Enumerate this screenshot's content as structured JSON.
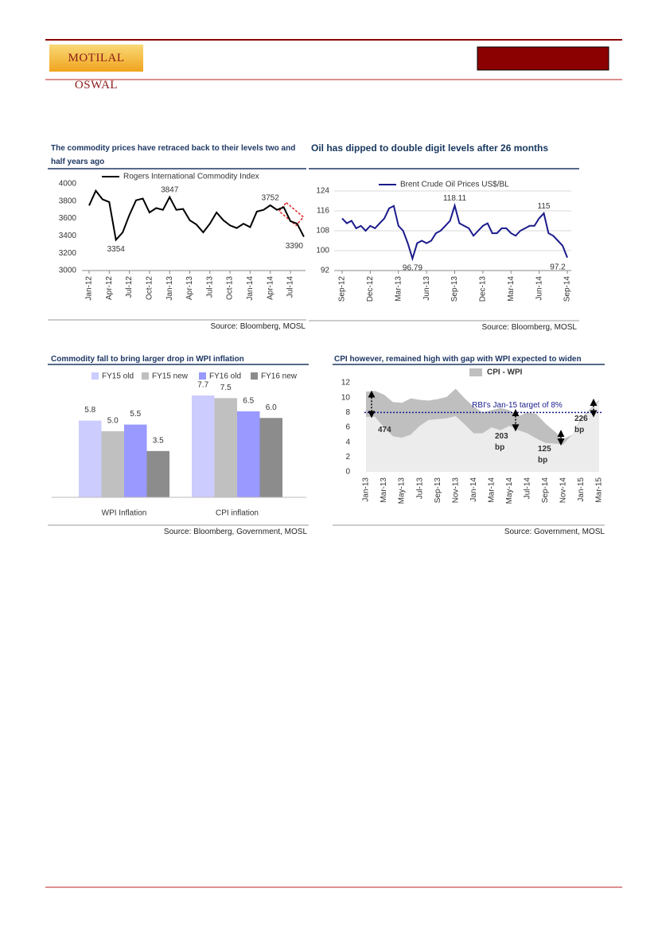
{
  "header": {
    "logo": "MOTILAL OSWAL"
  },
  "chart_data": [
    {
      "type": "line",
      "title": "The commodity prices have retraced back to their levels two and half years ago",
      "source": "Source: Bloomberg, MOSL",
      "categories": [
        "Jan-12",
        null,
        null,
        "Apr-12",
        null,
        null,
        "Jul-12",
        null,
        null,
        "Oct-12",
        null,
        null,
        "Jan-13",
        null,
        null,
        "Apr-13",
        null,
        null,
        "Jul-13",
        null,
        null,
        "Oct-13",
        null,
        null,
        "Jan-14",
        null,
        null,
        "Apr-14",
        null,
        null,
        "Jul-14",
        null,
        null
      ],
      "series": [
        {
          "name": "Rogers International Commodity Index",
          "color": "#000000",
          "values": [
            3750,
            3920,
            3820,
            3790,
            3354,
            3440,
            3640,
            3810,
            3830,
            3670,
            3720,
            3700,
            3847,
            3700,
            3710,
            3580,
            3530,
            3440,
            3540,
            3670,
            3580,
            3520,
            3490,
            3540,
            3500,
            3680,
            3700,
            3752,
            3700,
            3730,
            3570,
            3540,
            3390
          ],
          "value_labels": [
            null,
            null,
            null,
            null,
            "3354",
            null,
            null,
            null,
            null,
            null,
            null,
            null,
            "3847",
            null,
            null,
            null,
            null,
            null,
            null,
            null,
            null,
            null,
            null,
            null,
            null,
            null,
            null,
            "3752",
            null,
            null,
            null,
            null,
            "3390"
          ]
        }
      ],
      "ylim": [
        3000,
        4000
      ],
      "yticks": [
        3000,
        3200,
        3400,
        3600,
        3800,
        4000
      ],
      "grid": false
    },
    {
      "type": "line",
      "title": "Oil has dipped to double digit levels after 26 months",
      "source": "Source: Bloomberg, MOSL",
      "categories": [
        "Sep-12",
        null,
        null,
        null,
        null,
        null,
        "Dec-12",
        null,
        null,
        null,
        null,
        null,
        "Mar-13",
        null,
        null,
        null,
        null,
        null,
        "Jun-13",
        null,
        null,
        null,
        null,
        null,
        "Sep-13",
        null,
        null,
        null,
        null,
        null,
        "Dec-13",
        null,
        null,
        null,
        null,
        null,
        "Mar-14",
        null,
        null,
        null,
        null,
        null,
        "Jun-14",
        null,
        null,
        null,
        null,
        null,
        "Sep-14"
      ],
      "series": [
        {
          "name": "Brent Crude Oil Prices US$/BL",
          "color": "#1a1a8c",
          "values": [
            113,
            111,
            112,
            109,
            110,
            108,
            110,
            109,
            111,
            113,
            117,
            118,
            110,
            108,
            103,
            96.79,
            103,
            104,
            103,
            104,
            107,
            108,
            110,
            112,
            118.11,
            111,
            110,
            109,
            106,
            108,
            110,
            111,
            107,
            107,
            109,
            109,
            107,
            106,
            108,
            109,
            110,
            110,
            113,
            115,
            107,
            106,
            104,
            102,
            97.2
          ],
          "value_labels": [
            null,
            null,
            null,
            null,
            null,
            null,
            null,
            null,
            null,
            null,
            null,
            null,
            null,
            null,
            null,
            "96.79",
            null,
            null,
            null,
            null,
            null,
            null,
            null,
            null,
            "118.11",
            null,
            null,
            null,
            null,
            null,
            null,
            null,
            null,
            null,
            null,
            null,
            null,
            null,
            null,
            null,
            null,
            null,
            null,
            "115",
            null,
            null,
            null,
            null,
            "97.2"
          ]
        }
      ],
      "ylim": [
        92,
        124
      ],
      "yticks": [
        92,
        100,
        108,
        116,
        124
      ],
      "grid": true
    },
    {
      "type": "bar",
      "title": "Commodity fall to bring larger drop in WPI inflation",
      "source": "Source: Bloomberg, Government, MOSL",
      "categories": [
        "WPI Inflation",
        "CPI inflation"
      ],
      "series": [
        {
          "name": "FY15 old",
          "color": "#ccccff",
          "values": [
            5.8,
            7.7
          ],
          "value_labels": [
            "5.8",
            "7.7"
          ]
        },
        {
          "name": "FY15 new",
          "color": "#c0c0c0",
          "values": [
            5,
            7.5
          ],
          "value_labels": [
            "5.0",
            "7.5"
          ]
        },
        {
          "name": "FY16 old",
          "color": "#9999ff",
          "values": [
            5.5,
            6.5
          ],
          "value_labels": [
            "5.5",
            "6.5"
          ]
        },
        {
          "name": "FY16 new",
          "color": "#8c8c8c",
          "values": [
            3.5,
            6
          ],
          "value_labels": [
            "3.5",
            "6.0"
          ]
        }
      ]
    },
    {
      "type": "area",
      "title": "CPI however, remained high with gap with WPI expected to widen",
      "source": "Source: Government, MOSL",
      "categories": [
        "Jan-13",
        null,
        "Mar-13",
        null,
        "May-13",
        null,
        "Jul-13",
        null,
        "Sep-13",
        null,
        "Nov-13",
        null,
        "Jan-14",
        null,
        "Mar-14",
        null,
        "May-14",
        null,
        "Jul-14",
        null,
        "Sep-14",
        null,
        "Nov-14",
        null,
        "Jan-15",
        null,
        "Mar-15"
      ],
      "series": [
        {
          "name": "CPI - WPI",
          "color": "#bfbfbf",
          "base_color": "#ececec",
          "values": [
            10.8,
            10.9,
            10.4,
            9.4,
            9.3,
            9.9,
            9.7,
            9.6,
            9.8,
            10.1,
            11.2,
            9.9,
            8.8,
            8,
            8.3,
            8.6,
            8.3,
            7.5,
            8,
            7.8,
            6.5,
            5.5,
            4.4,
            5,
            7.2,
            8.5,
            9.7
          ],
          "low": [
            7.4,
            7.4,
            6,
            4.8,
            4.6,
            5,
            6.2,
            7,
            7.1,
            7.2,
            7.5,
            6.4,
            5.2,
            5.2,
            6,
            5.6,
            6.2,
            5.6,
            5.2,
            4.5,
            3.9,
            3.8,
            3.7,
            5,
            7,
            8.3,
            9.5
          ]
        }
      ],
      "reference_line": {
        "value": 8,
        "label": "RBI's Jan-15 target of 8%",
        "color": "#1a1a8c"
      },
      "annotations": [
        "474",
        "203 bp",
        "125 bp",
        "226 bp"
      ],
      "ylim": [
        0,
        12
      ],
      "yticks": [
        0,
        2,
        4,
        6,
        8,
        10,
        12
      ],
      "grid": false
    }
  ]
}
